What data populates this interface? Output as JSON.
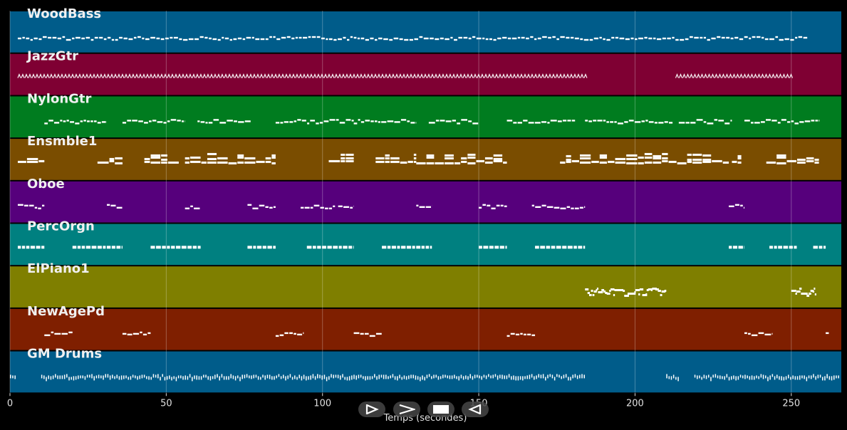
{
  "chart_data": {
    "type": "piano-roll",
    "xlabel": "Temps (secondes)",
    "xlim": [
      0,
      266
    ],
    "xticks": [
      0,
      50,
      100,
      150,
      200,
      250
    ],
    "grid": true,
    "tracks": [
      {
        "name": "WoodBass",
        "color": "#005c8a",
        "pattern": "walk",
        "segments": [
          [
            2.5,
            255
          ]
        ]
      },
      {
        "name": "JazzGtr",
        "color": "#7f0033",
        "pattern": "tri",
        "segments": [
          [
            2.5,
            184
          ],
          [
            213,
            250
          ]
        ]
      },
      {
        "name": "NylonGtr",
        "color": "#007c1f",
        "pattern": "melody",
        "segments": [
          [
            11,
            31
          ],
          [
            36,
            56
          ],
          [
            60,
            77
          ],
          [
            85,
            110
          ],
          [
            110,
            130
          ],
          [
            134,
            150
          ],
          [
            159,
            181
          ],
          [
            184,
            212
          ],
          [
            214,
            231
          ],
          [
            235,
            259
          ]
        ]
      },
      {
        "name": "Ensmble1",
        "color": "#7a4d00",
        "pattern": "chords",
        "segments": [
          [
            2.5,
            11
          ],
          [
            28,
            36
          ],
          [
            43,
            54
          ],
          [
            56,
            85
          ],
          [
            102,
            110
          ],
          [
            117,
            130
          ],
          [
            130,
            159
          ],
          [
            176,
            230
          ],
          [
            231,
            234
          ],
          [
            242,
            259
          ]
        ]
      },
      {
        "name": "Oboe",
        "color": "#56007c",
        "pattern": "melody",
        "segments": [
          [
            2.5,
            11
          ],
          [
            31,
            36
          ],
          [
            56,
            61
          ],
          [
            76,
            85
          ],
          [
            93,
            104
          ],
          [
            105,
            110
          ],
          [
            130,
            135
          ],
          [
            150,
            159
          ],
          [
            167,
            184
          ],
          [
            230,
            235
          ]
        ]
      },
      {
        "name": "PercOrgn",
        "color": "#008080",
        "pattern": "blocks",
        "segments": [
          [
            2.5,
            11
          ],
          [
            20,
            36
          ],
          [
            45,
            61
          ],
          [
            76,
            85
          ],
          [
            95,
            110
          ],
          [
            119,
            135
          ],
          [
            150,
            159
          ],
          [
            168,
            184
          ],
          [
            230,
            235
          ],
          [
            243,
            252
          ],
          [
            257,
            261
          ]
        ]
      },
      {
        "name": "ElPiano1",
        "color": "#7f7f00",
        "pattern": "dense",
        "segments": [
          [
            184,
            210
          ],
          [
            250,
            258
          ]
        ]
      },
      {
        "name": "NewAgePd",
        "color": "#7f1f00",
        "pattern": "melody",
        "segments": [
          [
            11,
            20
          ],
          [
            36,
            45
          ],
          [
            85,
            94
          ],
          [
            110,
            119
          ],
          [
            159,
            168
          ],
          [
            235,
            244
          ],
          [
            261,
            262
          ]
        ]
      },
      {
        "name": "GM Drums",
        "color": "#005c8a",
        "pattern": "drums",
        "segments": [
          [
            0,
            2
          ],
          [
            10,
            184
          ],
          [
            210,
            214
          ],
          [
            219,
            265
          ]
        ]
      }
    ]
  },
  "controls": {
    "play_icon": "play-icon",
    "fast_forward_icon": "fast-forward-icon",
    "stop_icon": "stop-icon",
    "rewind_icon": "rewind-icon"
  }
}
